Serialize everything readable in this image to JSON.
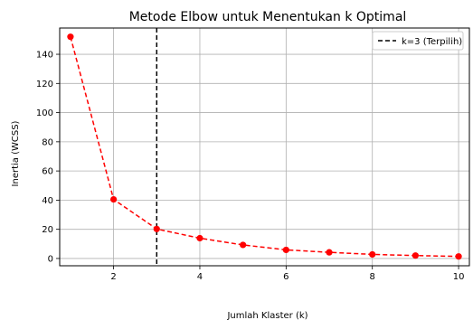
{
  "chart_data": {
    "type": "line",
    "title": "Metode Elbow untuk Menentukan k Optimal",
    "xlabel": "Jumlah Klaster (k)",
    "ylabel": "Inertia (WCSS)",
    "xlim": [
      0.75,
      10.25
    ],
    "ylim": [
      -5,
      158
    ],
    "xticks": [
      2,
      4,
      6,
      8,
      10
    ],
    "yticks": [
      0,
      20,
      40,
      60,
      80,
      100,
      120,
      140
    ],
    "grid": true,
    "legend_position": "top-right",
    "series": [
      {
        "x": [
          1,
          2,
          3,
          4,
          5,
          6,
          7,
          8,
          9,
          10
        ],
        "values": [
          152,
          40.5,
          20.2,
          13.9,
          9.3,
          5.9,
          4.2,
          2.8,
          2.0,
          1.4
        ],
        "color": "#ff0000",
        "line_style": "dashed",
        "marker": "circle"
      }
    ],
    "vline": {
      "x": 3,
      "name": "k=3 (Terpilih)",
      "color": "#000000",
      "line_style": "dashed"
    }
  }
}
